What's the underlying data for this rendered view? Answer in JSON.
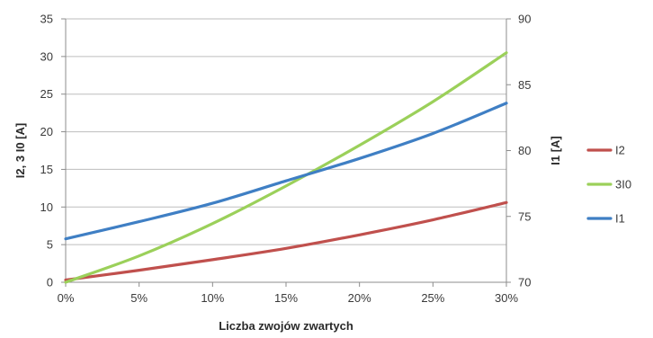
{
  "chart_data": {
    "type": "line",
    "xlabel": "Liczba zwojów zwartych",
    "ylabel_left": "I2, 3 I0 [A]",
    "ylabel_right": "I1 [A]",
    "x": [
      0,
      5,
      10,
      15,
      20,
      25,
      30
    ],
    "x_tick_labels": [
      "0%",
      "5%",
      "10%",
      "15%",
      "20%",
      "25%",
      "30%"
    ],
    "ylim_left": [
      0,
      35
    ],
    "y_ticks_left": [
      "0",
      "5",
      "10",
      "15",
      "20",
      "25",
      "30",
      "35"
    ],
    "ylim_right": [
      70,
      90
    ],
    "y_ticks_right": [
      "70",
      "75",
      "80",
      "85",
      "90"
    ],
    "grid": "horizontal",
    "legend_position": "right",
    "series": [
      {
        "name": "I2",
        "axis": "left",
        "color": "#c0504d",
        "values": [
          0.3,
          1.6,
          3.0,
          4.5,
          6.3,
          8.3,
          10.6
        ]
      },
      {
        "name": "3I0",
        "axis": "left",
        "color": "#9bd05a",
        "values": [
          0.0,
          3.5,
          7.8,
          12.8,
          18.2,
          24.0,
          30.5
        ]
      },
      {
        "name": "I1",
        "axis": "right",
        "color": "#3f7fc4",
        "values": [
          73.3,
          74.6,
          76.0,
          77.7,
          79.4,
          81.3,
          83.6
        ]
      }
    ]
  }
}
